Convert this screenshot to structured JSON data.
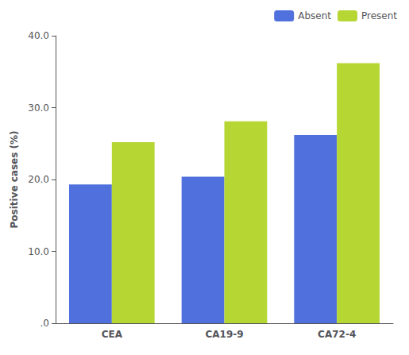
{
  "chart_data": {
    "type": "bar",
    "categories": [
      "CEA",
      "CA19-9",
      "CA72-4"
    ],
    "series": [
      {
        "name": "Absent",
        "values": [
          19.3,
          20.4,
          26.2
        ]
      },
      {
        "name": "Present",
        "values": [
          25.2,
          28.1,
          36.2
        ]
      }
    ],
    "ylabel": "Positive cases (%)",
    "ylim": [
      0,
      40
    ],
    "yticks": [
      {
        "value": 0,
        "label": ".0"
      },
      {
        "value": 10,
        "label": "10.0"
      },
      {
        "value": 20,
        "label": "20.0"
      },
      {
        "value": 30,
        "label": "30.0"
      },
      {
        "value": 40,
        "label": "40.0"
      }
    ],
    "grid": false,
    "legend": "upper right"
  }
}
